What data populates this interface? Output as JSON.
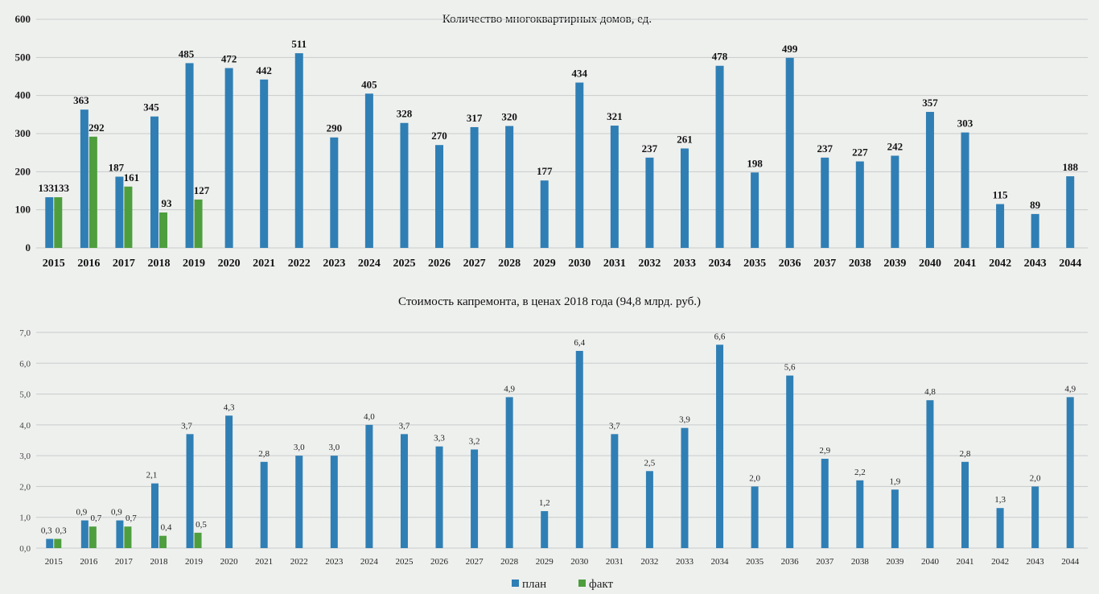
{
  "chart_data": [
    {
      "type": "bar",
      "title": "Количество многоквартирных домов, ед.",
      "xlabel": "",
      "ylabel": "",
      "ylim": [
        0,
        600
      ],
      "yticks": [
        "0",
        "100",
        "200",
        "300",
        "400",
        "500",
        "600"
      ],
      "grid": true,
      "categories": [
        "2015",
        "2016",
        "2017",
        "2018",
        "2019",
        "2020",
        "2021",
        "2022",
        "2023",
        "2024",
        "2025",
        "2026",
        "2027",
        "2028",
        "2029",
        "2030",
        "2031",
        "2032",
        "2033",
        "2034",
        "2035",
        "2036",
        "2037",
        "2038",
        "2039",
        "2040",
        "2041",
        "2042",
        "2043",
        "2044"
      ],
      "series": [
        {
          "name": "план",
          "color": "#2f7fb5",
          "values": [
            133,
            363,
            187,
            345,
            485,
            472,
            442,
            511,
            290,
            405,
            328,
            270,
            317,
            320,
            177,
            434,
            321,
            237,
            261,
            478,
            198,
            499,
            237,
            227,
            242,
            357,
            303,
            115,
            89,
            188
          ],
          "labels": [
            "133",
            "363",
            "187",
            "345",
            "485",
            "472",
            "442",
            "511",
            "290",
            "405",
            "328",
            "270",
            "317",
            "320",
            "177",
            "434",
            "321",
            "237",
            "261",
            "478",
            "198",
            "499",
            "237",
            "227",
            "242",
            "357",
            "303",
            "115",
            "89",
            "188"
          ]
        },
        {
          "name": "факт",
          "color": "#4e9e3e",
          "values": [
            133,
            292,
            161,
            93,
            127,
            null,
            null,
            null,
            null,
            null,
            null,
            null,
            null,
            null,
            null,
            null,
            null,
            null,
            null,
            null,
            null,
            null,
            null,
            null,
            null,
            null,
            null,
            null,
            null,
            null
          ],
          "labels": [
            "133",
            "292",
            "161",
            "93",
            "127",
            "",
            "",
            "",
            "",
            "",
            "",
            "",
            "",
            "",
            "",
            "",
            "",
            "",
            "",
            "",
            "",
            "",
            "",
            "",
            "",
            "",
            "",
            "",
            "",
            ""
          ]
        }
      ]
    },
    {
      "type": "bar",
      "title": "Стоимость капремонта, в ценах 2018 года (94,8 млрд. руб.)",
      "xlabel": "",
      "ylabel": "",
      "ylim": [
        0,
        7
      ],
      "yticks": [
        "0,0",
        "1,0",
        "2,0",
        "3,0",
        "4,0",
        "5,0",
        "6,0",
        "7,0"
      ],
      "grid": true,
      "categories": [
        "2015",
        "2016",
        "2017",
        "2018",
        "2019",
        "2020",
        "2021",
        "2022",
        "2023",
        "2024",
        "2025",
        "2026",
        "2027",
        "2028",
        "2029",
        "2030",
        "2031",
        "2032",
        "2033",
        "2034",
        "2035",
        "2036",
        "2037",
        "2038",
        "2039",
        "2040",
        "2041",
        "2042",
        "2043",
        "2044"
      ],
      "series": [
        {
          "name": "план",
          "color": "#2f7fb5",
          "values": [
            0.3,
            0.9,
            0.9,
            2.1,
            3.7,
            4.3,
            2.8,
            3.0,
            3.0,
            4.0,
            3.7,
            3.3,
            3.2,
            4.9,
            1.2,
            6.4,
            3.7,
            2.5,
            3.9,
            6.6,
            2.0,
            5.6,
            2.9,
            2.2,
            1.9,
            4.8,
            2.8,
            1.3,
            2.0,
            4.9
          ],
          "labels": [
            "0,3",
            "0,9",
            "0,9",
            "2,1",
            "3,7",
            "4,3",
            "2,8",
            "3,0",
            "3,0",
            "4,0",
            "3,7",
            "3,3",
            "3,2",
            "4,9",
            "1,2",
            "6,4",
            "3,7",
            "2,5",
            "3,9",
            "6,6",
            "2,0",
            "5,6",
            "2,9",
            "2,2",
            "1,9",
            "4,8",
            "2,8",
            "1,3",
            "2,0",
            "4,9"
          ]
        },
        {
          "name": "факт",
          "color": "#4e9e3e",
          "values": [
            0.3,
            0.7,
            0.7,
            0.4,
            0.5,
            null,
            null,
            null,
            null,
            null,
            null,
            null,
            null,
            null,
            null,
            null,
            null,
            null,
            null,
            null,
            null,
            null,
            null,
            null,
            null,
            null,
            null,
            null,
            null,
            null
          ],
          "labels": [
            "0,3",
            "0,7",
            "0,7",
            "0,4",
            "0,5",
            "",
            "",
            "",
            "",
            "",
            "",
            "",
            "",
            "",
            "",
            "",
            "",
            "",
            "",
            "",
            "",
            "",
            "",
            "",
            "",
            "",
            "",
            "",
            "",
            ""
          ]
        }
      ]
    }
  ],
  "legend": {
    "placement": "bottom-center",
    "items": [
      {
        "label": "план",
        "color": "#2f7fb5"
      },
      {
        "label": "факт",
        "color": "#4e9e3e"
      }
    ]
  }
}
